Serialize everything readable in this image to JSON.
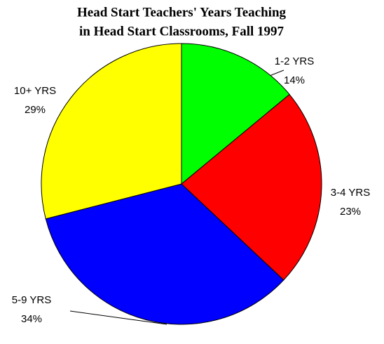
{
  "chart_data": {
    "type": "pie",
    "title": [
      "Head Start Teachers' Years Teaching",
      "in Head Start Classrooms, Fall 1997"
    ],
    "categories": [
      "1-2 YRS",
      "3-4 YRS",
      "5-9 YRS",
      "10+ YRS"
    ],
    "values": [
      14,
      23,
      34,
      29
    ],
    "value_labels": [
      "14%",
      "23%",
      "34%",
      "29%"
    ],
    "colors": [
      "#00ff00",
      "#ff0000",
      "#0000ff",
      "#ffff00"
    ]
  }
}
